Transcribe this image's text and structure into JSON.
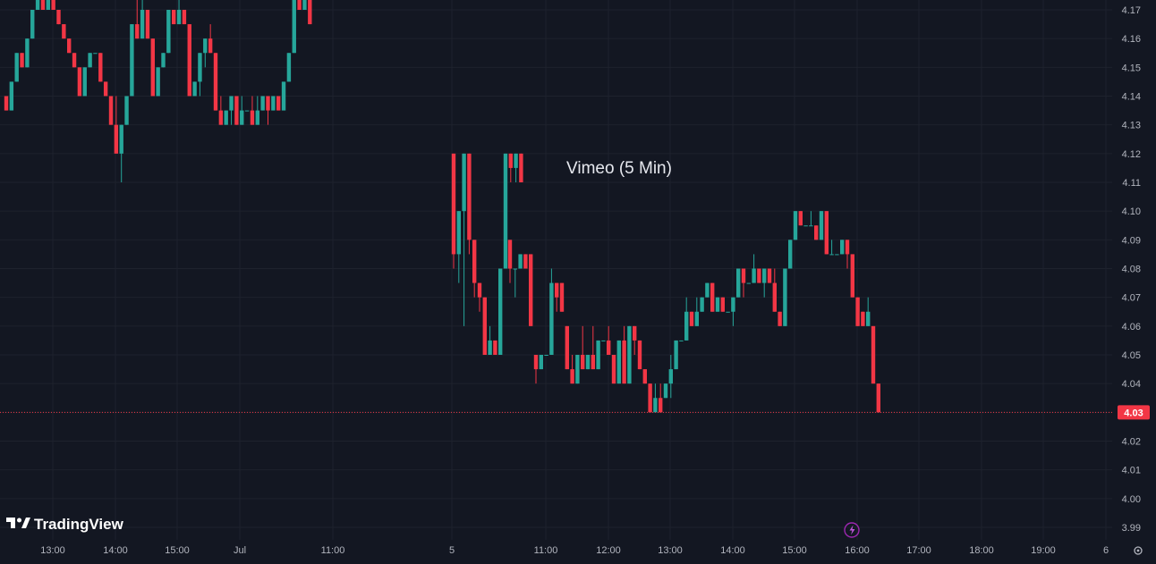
{
  "chart_data": {
    "type": "candlestick",
    "title": "Vimeo (5 Min)",
    "ylim": [
      3.99,
      4.17
    ],
    "y_ticks": [
      4.17,
      4.16,
      4.15,
      4.14,
      4.13,
      4.12,
      4.11,
      4.1,
      4.09,
      4.08,
      4.07,
      4.06,
      4.05,
      4.04,
      4.03,
      4.02,
      4.01,
      4.0,
      3.99
    ],
    "x_ticks": [
      "13:00",
      "14:00",
      "15:00",
      "Jul",
      "11:00",
      "5",
      "11:00",
      "12:00",
      "13:00",
      "14:00",
      "15:00",
      "16:00",
      "17:00",
      "18:00",
      "19:00",
      "6"
    ],
    "last_price": 4.03,
    "grid": true,
    "series": [
      {
        "ohlc": [
          [
            4.14,
            4.14,
            4.135,
            4.135
          ],
          [
            4.135,
            4.145,
            4.135,
            4.145
          ],
          [
            4.145,
            4.155,
            4.145,
            4.155
          ],
          [
            4.155,
            4.155,
            4.15,
            4.15
          ],
          [
            4.15,
            4.16,
            4.15,
            4.16
          ],
          [
            4.16,
            4.17,
            4.16,
            4.17
          ],
          [
            4.17,
            4.175,
            4.17,
            4.175
          ],
          [
            4.175,
            4.175,
            4.17,
            4.17
          ],
          [
            4.17,
            4.175,
            4.17,
            4.175
          ],
          [
            4.175,
            4.175,
            4.17,
            4.17
          ],
          [
            4.17,
            4.17,
            4.165,
            4.165
          ],
          [
            4.165,
            4.165,
            4.16,
            4.16
          ],
          [
            4.16,
            4.16,
            4.155,
            4.155
          ],
          [
            4.155,
            4.155,
            4.15,
            4.15
          ],
          [
            4.15,
            4.15,
            4.14,
            4.14
          ],
          [
            4.14,
            4.15,
            4.14,
            4.15
          ],
          [
            4.15,
            4.155,
            4.15,
            4.155
          ],
          [
            4.155,
            4.155,
            4.155,
            4.155
          ],
          [
            4.155,
            4.155,
            4.145,
            4.145
          ],
          [
            4.145,
            4.145,
            4.14,
            4.14
          ],
          [
            4.14,
            4.14,
            4.13,
            4.13
          ],
          [
            4.13,
            4.14,
            4.12,
            4.12
          ],
          [
            4.12,
            4.13,
            4.11,
            4.13
          ],
          [
            4.13,
            4.14,
            4.13,
            4.14
          ],
          [
            4.14,
            4.165,
            4.14,
            4.165
          ],
          [
            4.165,
            4.175,
            4.16,
            4.16
          ],
          [
            4.16,
            4.175,
            4.16,
            4.17
          ],
          [
            4.17,
            4.17,
            4.16,
            4.16
          ],
          [
            4.16,
            4.16,
            4.14,
            4.14
          ],
          [
            4.14,
            4.15,
            4.14,
            4.15
          ],
          [
            4.15,
            4.155,
            4.15,
            4.155
          ],
          [
            4.155,
            4.17,
            4.155,
            4.17
          ],
          [
            4.17,
            4.17,
            4.165,
            4.165
          ],
          [
            4.165,
            4.175,
            4.165,
            4.17
          ],
          [
            4.17,
            4.17,
            4.165,
            4.165
          ],
          [
            4.165,
            4.165,
            4.14,
            4.14
          ],
          [
            4.14,
            4.145,
            4.14,
            4.145
          ],
          [
            4.145,
            4.155,
            4.14,
            4.155
          ],
          [
            4.155,
            4.16,
            4.15,
            4.16
          ],
          [
            4.16,
            4.165,
            4.155,
            4.155
          ],
          [
            4.155,
            4.155,
            4.135,
            4.135
          ],
          [
            4.135,
            4.14,
            4.13,
            4.13
          ],
          [
            4.13,
            4.135,
            4.13,
            4.135
          ],
          [
            4.135,
            4.14,
            4.13,
            4.14
          ],
          [
            4.14,
            4.14,
            4.13,
            4.13
          ],
          [
            4.13,
            4.14,
            4.13,
            4.135
          ],
          [
            4.135,
            4.135,
            4.135,
            4.135
          ],
          [
            4.135,
            4.14,
            4.13,
            4.13
          ],
          [
            4.13,
            4.14,
            4.13,
            4.135
          ],
          [
            4.135,
            4.14,
            4.135,
            4.14
          ],
          [
            4.14,
            4.14,
            4.13,
            4.135
          ],
          [
            4.135,
            4.14,
            4.135,
            4.14
          ],
          [
            4.14,
            4.14,
            4.135,
            4.135
          ],
          [
            4.135,
            4.145,
            4.135,
            4.145
          ],
          [
            4.145,
            4.155,
            4.145,
            4.155
          ],
          [
            4.155,
            4.175,
            4.155,
            4.175
          ],
          [
            4.175,
            4.175,
            4.17,
            4.17
          ],
          [
            4.17,
            4.175,
            4.17,
            4.175
          ],
          [
            4.175,
            4.175,
            4.165,
            4.165
          ],
          [
            4.12,
            4.12,
            4.08,
            4.085
          ],
          [
            4.085,
            4.1,
            4.075,
            4.1
          ],
          [
            4.1,
            4.12,
            4.06,
            4.12
          ],
          [
            4.12,
            4.12,
            4.085,
            4.09
          ],
          [
            4.09,
            4.09,
            4.07,
            4.075
          ],
          [
            4.075,
            4.075,
            4.065,
            4.07
          ],
          [
            4.07,
            4.07,
            4.05,
            4.05
          ],
          [
            4.05,
            4.06,
            4.05,
            4.055
          ],
          [
            4.055,
            4.055,
            4.05,
            4.05
          ],
          [
            4.05,
            4.08,
            4.05,
            4.08
          ],
          [
            4.08,
            4.12,
            4.08,
            4.12
          ],
          [
            4.12,
            4.12,
            4.11,
            4.115
          ],
          [
            4.115,
            4.12,
            4.11,
            4.12
          ],
          [
            4.12,
            4.12,
            4.11,
            4.11
          ],
          [
            4.09,
            4.09,
            4.075,
            4.08
          ],
          [
            4.08,
            4.08,
            4.07,
            4.08
          ],
          [
            4.08,
            4.085,
            4.08,
            4.085
          ],
          [
            4.085,
            4.085,
            4.08,
            4.08
          ],
          [
            4.085,
            4.085,
            4.06,
            4.06
          ],
          [
            4.05,
            4.05,
            4.04,
            4.045
          ],
          [
            4.045,
            4.05,
            4.045,
            4.05
          ],
          [
            4.05,
            4.05,
            4.05,
            4.05
          ],
          [
            4.05,
            4.08,
            4.05,
            4.075
          ],
          [
            4.075,
            4.075,
            4.065,
            4.07
          ],
          [
            4.075,
            4.075,
            4.065,
            4.065
          ],
          [
            4.06,
            4.06,
            4.045,
            4.045
          ],
          [
            4.045,
            4.05,
            4.04,
            4.04
          ],
          [
            4.04,
            4.05,
            4.04,
            4.05
          ],
          [
            4.05,
            4.06,
            4.045,
            4.045
          ],
          [
            4.045,
            4.05,
            4.045,
            4.05
          ],
          [
            4.05,
            4.06,
            4.045,
            4.045
          ],
          [
            4.045,
            4.055,
            4.045,
            4.055
          ],
          [
            4.055,
            4.055,
            4.055,
            4.055
          ],
          [
            4.055,
            4.06,
            4.05,
            4.05
          ],
          [
            4.05,
            4.05,
            4.04,
            4.04
          ],
          [
            4.04,
            4.055,
            4.04,
            4.055
          ],
          [
            4.055,
            4.06,
            4.04,
            4.04
          ],
          [
            4.04,
            4.06,
            4.04,
            4.06
          ],
          [
            4.06,
            4.06,
            4.05,
            4.055
          ],
          [
            4.055,
            4.055,
            4.045,
            4.045
          ],
          [
            4.045,
            4.045,
            4.04,
            4.04
          ],
          [
            4.04,
            4.04,
            4.03,
            4.03
          ],
          [
            4.03,
            4.04,
            4.03,
            4.035
          ],
          [
            4.035,
            4.04,
            4.03,
            4.03
          ],
          [
            4.035,
            4.04,
            4.035,
            4.04
          ],
          [
            4.04,
            4.05,
            4.035,
            4.045
          ],
          [
            4.045,
            4.055,
            4.045,
            4.055
          ],
          [
            4.055,
            4.055,
            4.055,
            4.055
          ],
          [
            4.055,
            4.07,
            4.055,
            4.065
          ],
          [
            4.065,
            4.065,
            4.06,
            4.06
          ],
          [
            4.06,
            4.07,
            4.06,
            4.065
          ],
          [
            4.065,
            4.07,
            4.065,
            4.07
          ],
          [
            4.07,
            4.075,
            4.07,
            4.075
          ],
          [
            4.075,
            4.075,
            4.065,
            4.065
          ],
          [
            4.065,
            4.07,
            4.065,
            4.07
          ],
          [
            4.07,
            4.07,
            4.065,
            4.065
          ],
          [
            4.065,
            4.065,
            4.065,
            4.065
          ],
          [
            4.065,
            4.07,
            4.06,
            4.07
          ],
          [
            4.07,
            4.08,
            4.07,
            4.08
          ],
          [
            4.08,
            4.08,
            4.07,
            4.075
          ],
          [
            4.075,
            4.075,
            4.075,
            4.075
          ],
          [
            4.075,
            4.085,
            4.075,
            4.08
          ],
          [
            4.08,
            4.08,
            4.075,
            4.075
          ],
          [
            4.075,
            4.08,
            4.07,
            4.08
          ],
          [
            4.08,
            4.08,
            4.075,
            4.075
          ],
          [
            4.075,
            4.08,
            4.065,
            4.065
          ],
          [
            4.065,
            4.065,
            4.06,
            4.06
          ],
          [
            4.06,
            4.08,
            4.06,
            4.08
          ],
          [
            4.08,
            4.09,
            4.08,
            4.09
          ],
          [
            4.09,
            4.1,
            4.09,
            4.1
          ],
          [
            4.1,
            4.1,
            4.095,
            4.095
          ],
          [
            4.095,
            4.095,
            4.095,
            4.095
          ],
          [
            4.095,
            4.1,
            4.095,
            4.095
          ],
          [
            4.095,
            4.095,
            4.09,
            4.09
          ],
          [
            4.09,
            4.1,
            4.09,
            4.1
          ],
          [
            4.1,
            4.1,
            4.085,
            4.085
          ],
          [
            4.085,
            4.09,
            4.085,
            4.085
          ],
          [
            4.085,
            4.085,
            4.085,
            4.085
          ],
          [
            4.085,
            4.09,
            4.085,
            4.09
          ],
          [
            4.09,
            4.09,
            4.08,
            4.085
          ],
          [
            4.085,
            4.085,
            4.07,
            4.07
          ],
          [
            4.07,
            4.07,
            4.06,
            4.06
          ],
          [
            4.065,
            4.065,
            4.06,
            4.06
          ],
          [
            4.06,
            4.07,
            4.06,
            4.065
          ],
          [
            4.06,
            4.06,
            4.04,
            4.04
          ],
          [
            4.04,
            4.04,
            4.03,
            4.03
          ]
        ]
      }
    ]
  },
  "branding": {
    "logo_text": "TradingView",
    "logo_icon": "tradingview-logo-icon"
  },
  "markers": {
    "event_icon": "lightning-bolt-icon"
  },
  "colors": {
    "background": "#131722",
    "grid": "#1e222d",
    "up": "#26a69a",
    "down": "#f23645",
    "text": "#b2b5be",
    "price_line": "#f23645"
  },
  "icons": {
    "settings": "gear-icon"
  }
}
